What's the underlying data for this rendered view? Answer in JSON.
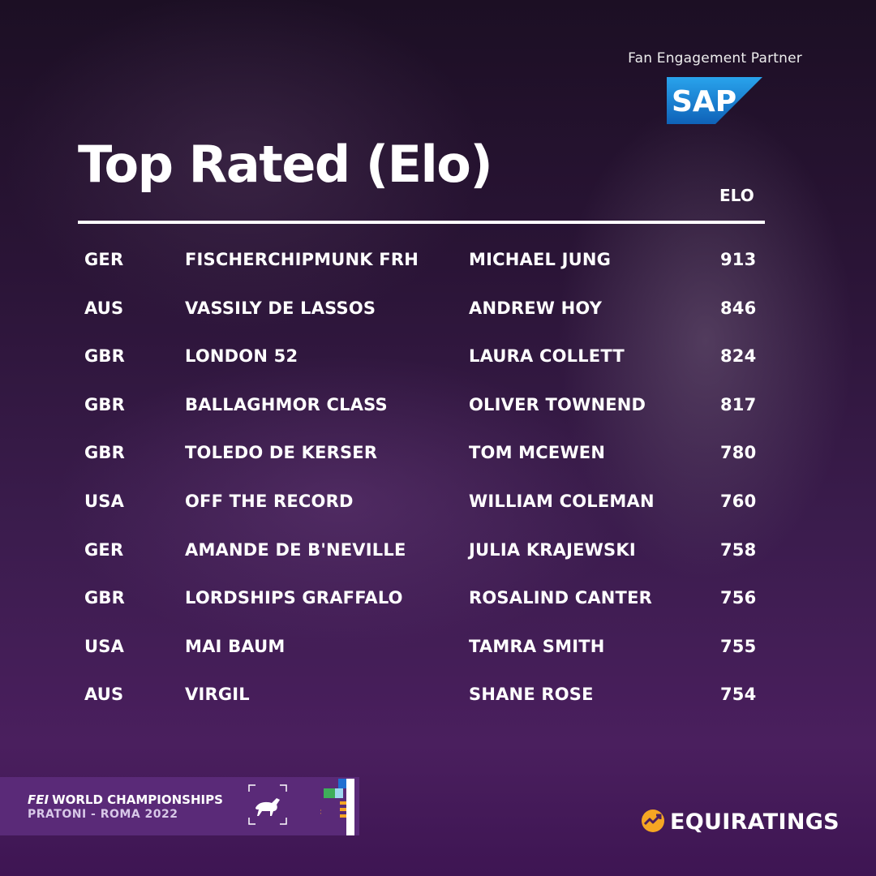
{
  "partner": {
    "label": "Fan Engagement Partner",
    "logo_text": "SAP",
    "logo_color": "#1a7fd4"
  },
  "title": "Top Rated (Elo)",
  "elo_header": "ELO",
  "rows": [
    {
      "country": "GER",
      "horse": "FISCHERCHIPMUNK FRH",
      "rider": "MICHAEL JUNG",
      "elo": "913"
    },
    {
      "country": "AUS",
      "horse": "VASSILY DE LASSOS",
      "rider": "ANDREW HOY",
      "elo": "846"
    },
    {
      "country": "GBR",
      "horse": "LONDON 52",
      "rider": "LAURA COLLETT",
      "elo": "824"
    },
    {
      "country": "GBR",
      "horse": "BALLAGHMOR CLASS",
      "rider": "OLIVER TOWNEND",
      "elo": "817"
    },
    {
      "country": "GBR",
      "horse": "TOLEDO DE KERSER",
      "rider": "TOM MCEWEN",
      "elo": "780"
    },
    {
      "country": "USA",
      "horse": "OFF THE RECORD",
      "rider": "WILLIAM COLEMAN",
      "elo": "760"
    },
    {
      "country": "GER",
      "horse": "AMANDE DE B'NEVILLE",
      "rider": "JULIA KRAJEWSKI",
      "elo": "758"
    },
    {
      "country": "GBR",
      "horse": "LORDSHIPS GRAFFALO",
      "rider": "ROSALIND CANTER",
      "elo": "756"
    },
    {
      "country": "USA",
      "horse": "MAI BAUM",
      "rider": "TAMRA SMITH",
      "elo": "755"
    },
    {
      "country": "AUS",
      "horse": "VIRGIL",
      "rider": "SHANE ROSE",
      "elo": "754"
    }
  ],
  "banner": {
    "org": "FEI",
    "event": "WORLD CHAMPIONSHIPS",
    "venue": "PRATONI - ROMA  2022",
    "icons": [
      "horse-icon",
      "flag-icon"
    ]
  },
  "footer": {
    "brand": "EQUIRATINGS",
    "brand_color": "#f5a623"
  }
}
